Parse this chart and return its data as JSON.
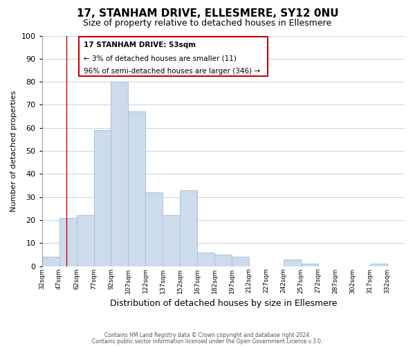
{
  "title": "17, STANHAM DRIVE, ELLESMERE, SY12 0NU",
  "subtitle": "Size of property relative to detached houses in Ellesmere",
  "xlabel": "Distribution of detached houses by size in Ellesmere",
  "ylabel": "Number of detached properties",
  "bar_color": "#ccdcec",
  "bar_edge_color": "#a8c0d4",
  "grid_color": "#c8d4dc",
  "annotation_box_color": "#cc0000",
  "property_line_color": "#cc0000",
  "property_line_x": 53,
  "ylim": [
    0,
    100
  ],
  "yticks": [
    0,
    10,
    20,
    30,
    40,
    50,
    60,
    70,
    80,
    90,
    100
  ],
  "bin_edges": [
    32,
    47,
    62,
    77,
    92,
    107,
    122,
    137,
    152,
    167,
    182,
    197,
    212,
    227,
    242,
    257,
    272,
    287,
    302,
    317,
    332
  ],
  "bin_labels": [
    "32sqm",
    "47sqm",
    "62sqm",
    "77sqm",
    "92sqm",
    "107sqm",
    "122sqm",
    "137sqm",
    "152sqm",
    "167sqm",
    "182sqm",
    "197sqm",
    "212sqm",
    "227sqm",
    "242sqm",
    "257sqm",
    "272sqm",
    "287sqm",
    "302sqm",
    "317sqm",
    "332sqm"
  ],
  "counts": [
    4,
    21,
    22,
    59,
    80,
    67,
    32,
    22,
    33,
    6,
    5,
    4,
    0,
    0,
    3,
    1,
    0,
    0,
    0,
    1,
    0
  ],
  "annotation_title": "17 STANHAM DRIVE: 53sqm",
  "annotation_line1": "← 3% of detached houses are smaller (11)",
  "annotation_line2": "96% of semi-detached houses are larger (346) →",
  "footer1": "Contains HM Land Registry data © Crown copyright and database right 2024.",
  "footer2": "Contains public sector information licensed under the Open Government Licence v.3.0."
}
